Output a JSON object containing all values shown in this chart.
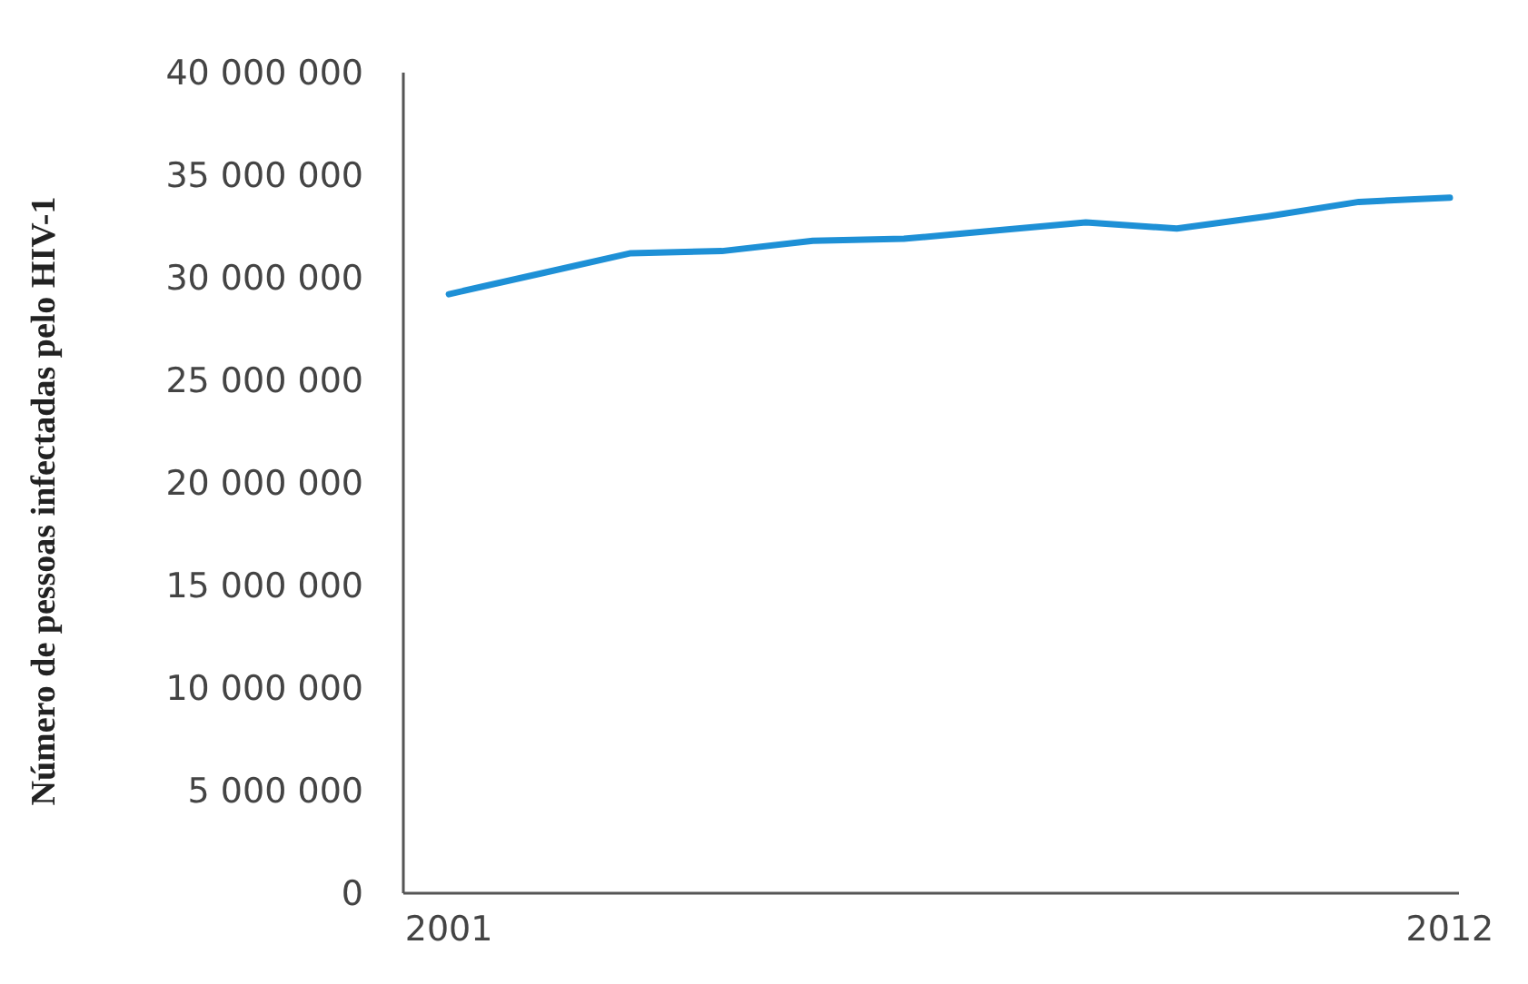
{
  "chart_data": {
    "type": "line",
    "ylabel": "Número de pessoas infectadas pelo HIV-1",
    "x": [
      2001,
      2002,
      2003,
      2004,
      2005,
      2006,
      2007,
      2008,
      2009,
      2010,
      2011,
      2012
    ],
    "series": [
      {
        "color": "#1e90d6",
        "values": [
          29200000,
          30200000,
          31200000,
          31300000,
          31800000,
          31900000,
          32300000,
          32700000,
          32400000,
          33000000,
          33700000,
          33900000
        ]
      }
    ],
    "xlim": [
      2000.5,
      2012.1
    ],
    "xticks": [
      2001,
      2012
    ],
    "ylim": [
      0,
      40000000
    ],
    "yticks": [
      0,
      {
        "value": 5000000,
        "label": "5 000 000"
      },
      {
        "value": 10000000,
        "label": "10 000 000"
      },
      {
        "value": 15000000,
        "label": "15 000 000"
      },
      {
        "value": 20000000,
        "label": "20 000 000"
      },
      {
        "value": 25000000,
        "label": "25 000 000"
      },
      {
        "value": 30000000,
        "label": "30 000 000"
      },
      {
        "value": 35000000,
        "label": "35 000 000"
      },
      {
        "value": 40000000,
        "label": "40 000 000"
      }
    ],
    "grid": false,
    "marker": "none",
    "line_style": "solid"
  }
}
